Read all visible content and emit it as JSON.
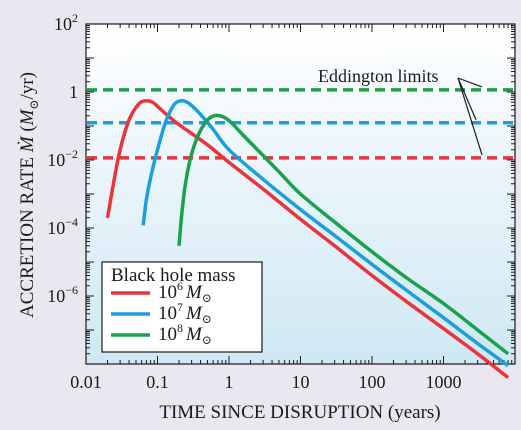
{
  "chart_data": {
    "type": "line",
    "title": "",
    "xlabel": "TIME SINCE DISRUPTION (years)",
    "ylabel": {
      "prefix": "ACCRETION RATE ",
      "symbol": "Ṁ",
      "unit_open": " (",
      "unit_symbol": "M",
      "unit_sub": "⊙",
      "unit_close": "/yr)"
    },
    "xscale": "log",
    "yscale": "log",
    "xlim": [
      0.01,
      10000
    ],
    "ylim": [
      1e-08,
      100
    ],
    "x_ticks": [
      {
        "value": 0.01,
        "label": "0.01"
      },
      {
        "value": 0.1,
        "label": "0.1"
      },
      {
        "value": 1,
        "label": "1"
      },
      {
        "value": 10,
        "label": "10"
      },
      {
        "value": 100,
        "label": "100"
      },
      {
        "value": 1000,
        "label": "1000"
      }
    ],
    "y_ticks": [
      {
        "value": 100,
        "base": "10",
        "exp": "2"
      },
      {
        "value": 1,
        "base": "1",
        "exp": ""
      },
      {
        "value": 0.01,
        "base": "10",
        "exp": "−2"
      },
      {
        "value": 0.0001,
        "base": "10",
        "exp": "−4"
      },
      {
        "value": 1e-06,
        "base": "10",
        "exp": "−6"
      }
    ],
    "legend": {
      "title": "Black hole mass",
      "placement": "bottom-left"
    },
    "series": [
      {
        "name": {
          "base": "10",
          "exp": "6",
          "symbol": "M",
          "sub": "⊙"
        },
        "color": "#e8343b",
        "x": [
          0.02,
          0.025,
          0.03,
          0.04,
          0.055,
          0.07,
          0.085,
          0.1,
          0.13,
          0.2,
          0.5,
          1,
          3,
          10,
          30,
          100,
          300,
          1000,
          3000,
          8000
        ],
        "y": [
          0.0002,
          0.003,
          0.02,
          0.15,
          0.45,
          0.55,
          0.5,
          0.38,
          0.23,
          0.11,
          0.028,
          0.0085,
          0.0014,
          0.00018,
          3e-05,
          4e-06,
          7e-07,
          1.1e-07,
          2e-08,
          4e-09
        ]
      },
      {
        "name": {
          "base": "10",
          "exp": "7",
          "symbol": "M",
          "sub": "⊙"
        },
        "color": "#1a9fdc",
        "x": [
          0.063,
          0.07,
          0.08,
          0.1,
          0.13,
          0.17,
          0.21,
          0.25,
          0.3,
          0.4,
          0.6,
          1,
          3,
          10,
          30,
          100,
          300,
          1000,
          3000,
          8000
        ],
        "y": [
          0.00012,
          0.0007,
          0.003,
          0.02,
          0.13,
          0.42,
          0.55,
          0.52,
          0.4,
          0.22,
          0.08,
          0.02,
          0.0027,
          0.00035,
          6e-05,
          8.5e-06,
          1.5e-06,
          2.3e-07,
          4e-08,
          9e-09
        ]
      },
      {
        "name": {
          "base": "10",
          "exp": "8",
          "symbol": "M",
          "sub": "⊙"
        },
        "color": "#1aa14b",
        "x": [
          0.2,
          0.22,
          0.25,
          0.3,
          0.38,
          0.5,
          0.62,
          0.75,
          0.9,
          1.1,
          1.5,
          2.5,
          5,
          10,
          30,
          100,
          300,
          1000,
          3000,
          8000
        ],
        "y": [
          3e-05,
          0.0003,
          0.0025,
          0.015,
          0.06,
          0.15,
          0.2,
          0.2,
          0.17,
          0.12,
          0.06,
          0.02,
          0.0045,
          0.001,
          0.00015,
          2e-05,
          3.5e-06,
          6e-07,
          1e-07,
          2e-08
        ]
      }
    ],
    "eddington_limits": [
      {
        "color": "#1aa14b",
        "y": 1.15
      },
      {
        "color": "#1a9fdc",
        "y": 0.125
      },
      {
        "color": "#e8343b",
        "y": 0.0115
      }
    ],
    "annotation": {
      "text": "Eddington limits"
    }
  }
}
